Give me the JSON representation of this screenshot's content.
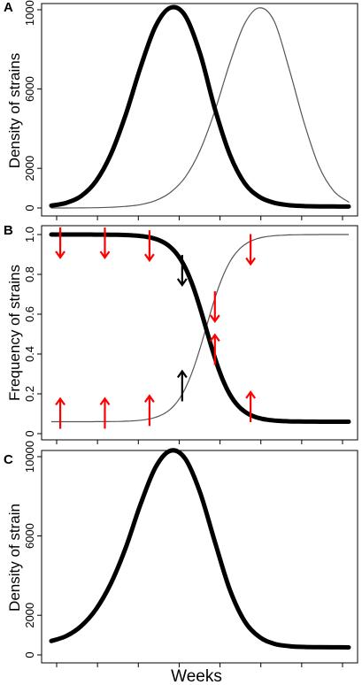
{
  "chart_data": [
    {
      "panel": "A",
      "type": "line",
      "ylabel": "Density of strains",
      "xlabel": "",
      "ylim": [
        0,
        10800
      ],
      "yticks": [
        "0",
        "2000",
        "6000",
        "10000"
      ],
      "xticks": 8,
      "x_grid": [
        0,
        0.05,
        0.1,
        0.15,
        0.2,
        0.25,
        0.3,
        0.35,
        0.4,
        0.45,
        0.5,
        0.55,
        0.6,
        0.65,
        0.7,
        0.75,
        0.8,
        0.85,
        0.9,
        0.95,
        1.0
      ],
      "series": [
        {
          "style": "thick",
          "color": "#000000",
          "values": [
            120,
            260,
            600,
            1350,
            2700,
            4700,
            7100,
            9150,
            10100,
            9700,
            7800,
            5000,
            2700,
            1250,
            560,
            260,
            140,
            95,
            80,
            75,
            70
          ]
        },
        {
          "style": "thin",
          "color": "#555555",
          "values": [
            0,
            0,
            5,
            15,
            35,
            80,
            170,
            370,
            780,
            1550,
            2900,
            4900,
            7300,
            9300,
            10100,
            9400,
            7000,
            4300,
            2100,
            850,
            300
          ]
        }
      ]
    },
    {
      "panel": "B",
      "type": "line",
      "ylabel": "Frequency of strains",
      "xlabel": "",
      "ylim": [
        0,
        1.02
      ],
      "yticks": [
        "0",
        "0.2",
        "0.4",
        "0.6",
        "0.8",
        "1.0"
      ],
      "xticks": 8,
      "logistic": {
        "midpoint": 0.52,
        "steepness": 22,
        "low": 0.06,
        "high": 1.0
      },
      "series": [
        {
          "name": "",
          "style": "thick",
          "color": "#000000",
          "trend": "decreasing"
        },
        {
          "name": "",
          "style": "thin",
          "color": "#555555",
          "trend": "increasing"
        }
      ],
      "arrows": [
        {
          "x": 0.03,
          "dir": "down",
          "color": "#ff0000",
          "on": "upper"
        },
        {
          "x": 0.18,
          "dir": "down",
          "color": "#ff0000",
          "on": "upper"
        },
        {
          "x": 0.33,
          "dir": "down",
          "color": "#ff0000",
          "on": "upper"
        },
        {
          "x": 0.44,
          "dir": "down",
          "color": "#000000",
          "on": "decreasing"
        },
        {
          "x": 0.55,
          "dir": "down",
          "color": "#ff0000",
          "on": "increasing"
        },
        {
          "x": 0.67,
          "dir": "down",
          "color": "#ff0000",
          "on": "upper"
        },
        {
          "x": 0.03,
          "dir": "up",
          "color": "#ff0000",
          "on": "lower"
        },
        {
          "x": 0.18,
          "dir": "up",
          "color": "#ff0000",
          "on": "lower"
        },
        {
          "x": 0.33,
          "dir": "up",
          "color": "#ff0000",
          "on": "lower"
        },
        {
          "x": 0.44,
          "dir": "up",
          "color": "#000000",
          "on": "increasing"
        },
        {
          "x": 0.55,
          "dir": "up",
          "color": "#ff0000",
          "on": "decreasing"
        },
        {
          "x": 0.67,
          "dir": "up",
          "color": "#ff0000",
          "on": "lower"
        }
      ]
    },
    {
      "panel": "C",
      "type": "line",
      "ylabel": "Density of strain",
      "xlabel": "Weeks",
      "ylim": [
        0,
        10800
      ],
      "yticks": [
        "0",
        "2000",
        "6000",
        "10000"
      ],
      "xticks": 8,
      "x_grid": [
        0,
        0.05,
        0.1,
        0.15,
        0.2,
        0.25,
        0.3,
        0.35,
        0.4,
        0.45,
        0.5,
        0.55,
        0.6,
        0.65,
        0.7,
        0.75,
        0.8,
        0.85,
        0.9,
        0.95,
        1.0
      ],
      "series": [
        {
          "style": "thick",
          "color": "#000000",
          "values": [
            700,
            950,
            1450,
            2300,
            3600,
            5400,
            7600,
            9450,
            10300,
            9900,
            8200,
            5700,
            3300,
            1700,
            900,
            560,
            440,
            400,
            390,
            385,
            380
          ]
        }
      ]
    }
  ]
}
